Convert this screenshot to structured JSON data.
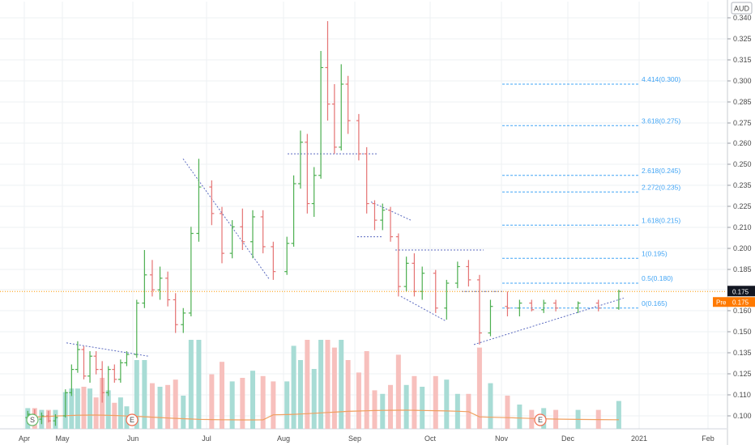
{
  "currency": "AUD",
  "colors": {
    "up": "#26a69a",
    "down": "#ef5350",
    "upBar": "#4caf50",
    "downBar": "#e57373",
    "volUp": "#a8dcd5",
    "volDown": "#f7c0bd",
    "fib": "#42a5f5",
    "trend": "#5c6bc0",
    "priceLine": "#ff9800",
    "grid": "#eef0f3",
    "pre": "#ff7a00",
    "last": "#131722"
  },
  "chart_data": {
    "type": "ohlc",
    "ylim": [
      0.09,
      0.345
    ],
    "y_ticks": [
      "0.340",
      "0.325",
      "0.315",
      "0.300",
      "0.285",
      "0.275",
      "0.260",
      "0.250",
      "0.235",
      "0.225",
      "0.210",
      "0.200",
      "0.185",
      "0.175",
      "0.160",
      "0.150",
      "0.135",
      "0.125",
      "0.110",
      "0.100"
    ],
    "x_ticks": [
      "Apr",
      "May",
      "Jun",
      "Jul",
      "Aug",
      "Sep",
      "Oct",
      "Nov",
      "Dec",
      "2021",
      "Feb"
    ],
    "last_price": "0.175",
    "pre_label": "Pre",
    "pre_price": "0.175",
    "events": [
      {
        "label": "S",
        "date": "Apr"
      },
      {
        "label": "E",
        "date": "Jun"
      },
      {
        "label": "E",
        "date": "Dec"
      }
    ],
    "fibonacci": [
      {
        "label": "4.414(0.300)",
        "value": 0.3
      },
      {
        "label": "3.618(0.275)",
        "value": 0.275
      },
      {
        "label": "2.618(0.245)",
        "value": 0.245
      },
      {
        "label": "2.272(0.235)",
        "value": 0.235
      },
      {
        "label": "1.618(0.215)",
        "value": 0.215
      },
      {
        "label": "1(0.195)",
        "value": 0.195
      },
      {
        "label": "0.5(0.180)",
        "value": 0.18
      },
      {
        "label": "0(0.165)",
        "value": 0.165
      }
    ],
    "trend_lines": [
      {
        "from": [
          "May",
          0.144
        ],
        "to": [
          "Jun",
          0.136
        ]
      },
      {
        "from": [
          "Jun",
          0.255
        ],
        "to": [
          "Aug",
          0.182
        ]
      },
      {
        "from": [
          "Aug",
          0.258
        ],
        "to": [
          "Sep",
          0.258
        ]
      },
      {
        "from": [
          "Sep",
          0.229
        ],
        "to": [
          "Sep",
          0.218
        ]
      },
      {
        "from": [
          "Sep",
          0.208
        ],
        "to": [
          "Sep",
          0.208
        ]
      },
      {
        "from": [
          "Sep",
          0.2
        ],
        "to": [
          "Oct",
          0.2
        ]
      },
      {
        "from": [
          "Sep",
          0.172
        ],
        "to": [
          "Oct",
          0.157
        ]
      },
      {
        "from": [
          "Oct",
          0.175
        ],
        "to": [
          "Nov",
          0.175
        ]
      },
      {
        "from": [
          "Oct",
          0.143
        ],
        "to": [
          "Dec",
          0.171
        ]
      }
    ],
    "ohlc": [
      {
        "d": "Apr",
        "o": 0.099,
        "h": 0.103,
        "l": 0.095,
        "c": 0.101
      },
      {
        "d": "Apr",
        "o": 0.101,
        "h": 0.104,
        "l": 0.096,
        "c": 0.098
      },
      {
        "d": "Apr",
        "o": 0.098,
        "h": 0.102,
        "l": 0.095,
        "c": 0.1
      },
      {
        "d": "Apr",
        "o": 0.1,
        "h": 0.103,
        "l": 0.096,
        "c": 0.097
      },
      {
        "d": "Apr",
        "o": 0.097,
        "h": 0.101,
        "l": 0.094,
        "c": 0.099
      },
      {
        "d": "May",
        "o": 0.1,
        "h": 0.116,
        "l": 0.099,
        "c": 0.114
      },
      {
        "d": "May",
        "o": 0.114,
        "h": 0.131,
        "l": 0.112,
        "c": 0.128
      },
      {
        "d": "May",
        "o": 0.128,
        "h": 0.145,
        "l": 0.126,
        "c": 0.14
      },
      {
        "d": "May",
        "o": 0.14,
        "h": 0.142,
        "l": 0.122,
        "c": 0.124
      },
      {
        "d": "May",
        "o": 0.124,
        "h": 0.139,
        "l": 0.12,
        "c": 0.136
      },
      {
        "d": "May",
        "o": 0.136,
        "h": 0.139,
        "l": 0.125,
        "c": 0.128
      },
      {
        "d": "May",
        "o": 0.128,
        "h": 0.133,
        "l": 0.108,
        "c": 0.114
      },
      {
        "d": "May",
        "o": 0.114,
        "h": 0.13,
        "l": 0.112,
        "c": 0.128
      },
      {
        "d": "May",
        "o": 0.128,
        "h": 0.131,
        "l": 0.12,
        "c": 0.122
      },
      {
        "d": "May",
        "o": 0.122,
        "h": 0.134,
        "l": 0.12,
        "c": 0.132
      },
      {
        "d": "May",
        "o": 0.132,
        "h": 0.139,
        "l": 0.13,
        "c": 0.137
      },
      {
        "d": "Jun",
        "o": 0.137,
        "h": 0.17,
        "l": 0.135,
        "c": 0.168
      },
      {
        "d": "Jun",
        "o": 0.168,
        "h": 0.2,
        "l": 0.165,
        "c": 0.185
      },
      {
        "d": "Jun",
        "o": 0.185,
        "h": 0.194,
        "l": 0.172,
        "c": 0.176
      },
      {
        "d": "Jun",
        "o": 0.176,
        "h": 0.19,
        "l": 0.17,
        "c": 0.183
      },
      {
        "d": "Jun",
        "o": 0.183,
        "h": 0.187,
        "l": 0.166,
        "c": 0.17
      },
      {
        "d": "Jun",
        "o": 0.17,
        "h": 0.174,
        "l": 0.15,
        "c": 0.155
      },
      {
        "d": "Jun",
        "o": 0.155,
        "h": 0.165,
        "l": 0.15,
        "c": 0.162
      },
      {
        "d": "Jun",
        "o": 0.162,
        "h": 0.214,
        "l": 0.16,
        "c": 0.21
      },
      {
        "d": "Jun",
        "o": 0.21,
        "h": 0.255,
        "l": 0.205,
        "c": 0.238
      },
      {
        "d": "Jul",
        "o": 0.238,
        "h": 0.242,
        "l": 0.215,
        "c": 0.222
      },
      {
        "d": "Jul",
        "o": 0.222,
        "h": 0.226,
        "l": 0.192,
        "c": 0.198
      },
      {
        "d": "Jul",
        "o": 0.198,
        "h": 0.218,
        "l": 0.195,
        "c": 0.214
      },
      {
        "d": "Jul",
        "o": 0.214,
        "h": 0.225,
        "l": 0.2,
        "c": 0.205
      },
      {
        "d": "Jul",
        "o": 0.205,
        "h": 0.224,
        "l": 0.195,
        "c": 0.22
      },
      {
        "d": "Jul",
        "o": 0.22,
        "h": 0.224,
        "l": 0.198,
        "c": 0.202
      },
      {
        "d": "Jul",
        "o": 0.202,
        "h": 0.205,
        "l": 0.182,
        "c": 0.187
      },
      {
        "d": "Aug",
        "o": 0.187,
        "h": 0.208,
        "l": 0.185,
        "c": 0.204
      },
      {
        "d": "Aug",
        "o": 0.204,
        "h": 0.245,
        "l": 0.202,
        "c": 0.24
      },
      {
        "d": "Aug",
        "o": 0.24,
        "h": 0.272,
        "l": 0.237,
        "c": 0.265
      },
      {
        "d": "Aug",
        "o": 0.265,
        "h": 0.27,
        "l": 0.222,
        "c": 0.228
      },
      {
        "d": "Aug",
        "o": 0.228,
        "h": 0.25,
        "l": 0.22,
        "c": 0.245
      },
      {
        "d": "Aug",
        "o": 0.245,
        "h": 0.32,
        "l": 0.243,
        "c": 0.31
      },
      {
        "d": "Aug",
        "o": 0.31,
        "h": 0.338,
        "l": 0.278,
        "c": 0.288
      },
      {
        "d": "Aug",
        "o": 0.288,
        "h": 0.3,
        "l": 0.258,
        "c": 0.262
      },
      {
        "d": "Aug",
        "o": 0.262,
        "h": 0.312,
        "l": 0.26,
        "c": 0.3
      },
      {
        "d": "Aug",
        "o": 0.3,
        "h": 0.305,
        "l": 0.27,
        "c": 0.278
      },
      {
        "d": "Sep",
        "o": 0.278,
        "h": 0.282,
        "l": 0.254,
        "c": 0.258
      },
      {
        "d": "Sep",
        "o": 0.258,
        "h": 0.262,
        "l": 0.222,
        "c": 0.228
      },
      {
        "d": "Sep",
        "o": 0.228,
        "h": 0.23,
        "l": 0.212,
        "c": 0.218
      },
      {
        "d": "Sep",
        "o": 0.218,
        "h": 0.228,
        "l": 0.212,
        "c": 0.224
      },
      {
        "d": "Sep",
        "o": 0.224,
        "h": 0.226,
        "l": 0.205,
        "c": 0.208
      },
      {
        "d": "Sep",
        "o": 0.208,
        "h": 0.21,
        "l": 0.172,
        "c": 0.178
      },
      {
        "d": "Sep",
        "o": 0.178,
        "h": 0.196,
        "l": 0.175,
        "c": 0.192
      },
      {
        "d": "Sep",
        "o": 0.192,
        "h": 0.198,
        "l": 0.172,
        "c": 0.175
      },
      {
        "d": "Sep",
        "o": 0.175,
        "h": 0.19,
        "l": 0.17,
        "c": 0.186
      },
      {
        "d": "Oct",
        "o": 0.186,
        "h": 0.188,
        "l": 0.162,
        "c": 0.165
      },
      {
        "d": "Oct",
        "o": 0.165,
        "h": 0.182,
        "l": 0.158,
        "c": 0.18
      },
      {
        "d": "Oct",
        "o": 0.18,
        "h": 0.193,
        "l": 0.177,
        "c": 0.19
      },
      {
        "d": "Oct",
        "o": 0.19,
        "h": 0.194,
        "l": 0.178,
        "c": 0.182
      },
      {
        "d": "Oct",
        "o": 0.182,
        "h": 0.185,
        "l": 0.143,
        "c": 0.15
      },
      {
        "d": "Oct",
        "o": 0.15,
        "h": 0.17,
        "l": 0.148,
        "c": 0.166
      },
      {
        "d": "Nov",
        "o": 0.166,
        "h": 0.175,
        "l": 0.16,
        "c": 0.165
      },
      {
        "d": "Nov",
        "o": 0.165,
        "h": 0.17,
        "l": 0.16,
        "c": 0.168
      },
      {
        "d": "Nov",
        "o": 0.168,
        "h": 0.17,
        "l": 0.163,
        "c": 0.164
      },
      {
        "d": "Nov",
        "o": 0.164,
        "h": 0.17,
        "l": 0.162,
        "c": 0.168
      },
      {
        "d": "Nov",
        "o": 0.168,
        "h": 0.17,
        "l": 0.163,
        "c": 0.165
      },
      {
        "d": "Dec",
        "o": 0.165,
        "h": 0.169,
        "l": 0.162,
        "c": 0.168
      },
      {
        "d": "Dec",
        "o": 0.168,
        "h": 0.17,
        "l": 0.163,
        "c": 0.165
      },
      {
        "d": "Dec",
        "o": 0.165,
        "h": 0.176,
        "l": 0.164,
        "c": 0.175
      }
    ],
    "volume_scale_max": 1.0,
    "volume_note": "",
    "ma_color": "#f0a060"
  }
}
